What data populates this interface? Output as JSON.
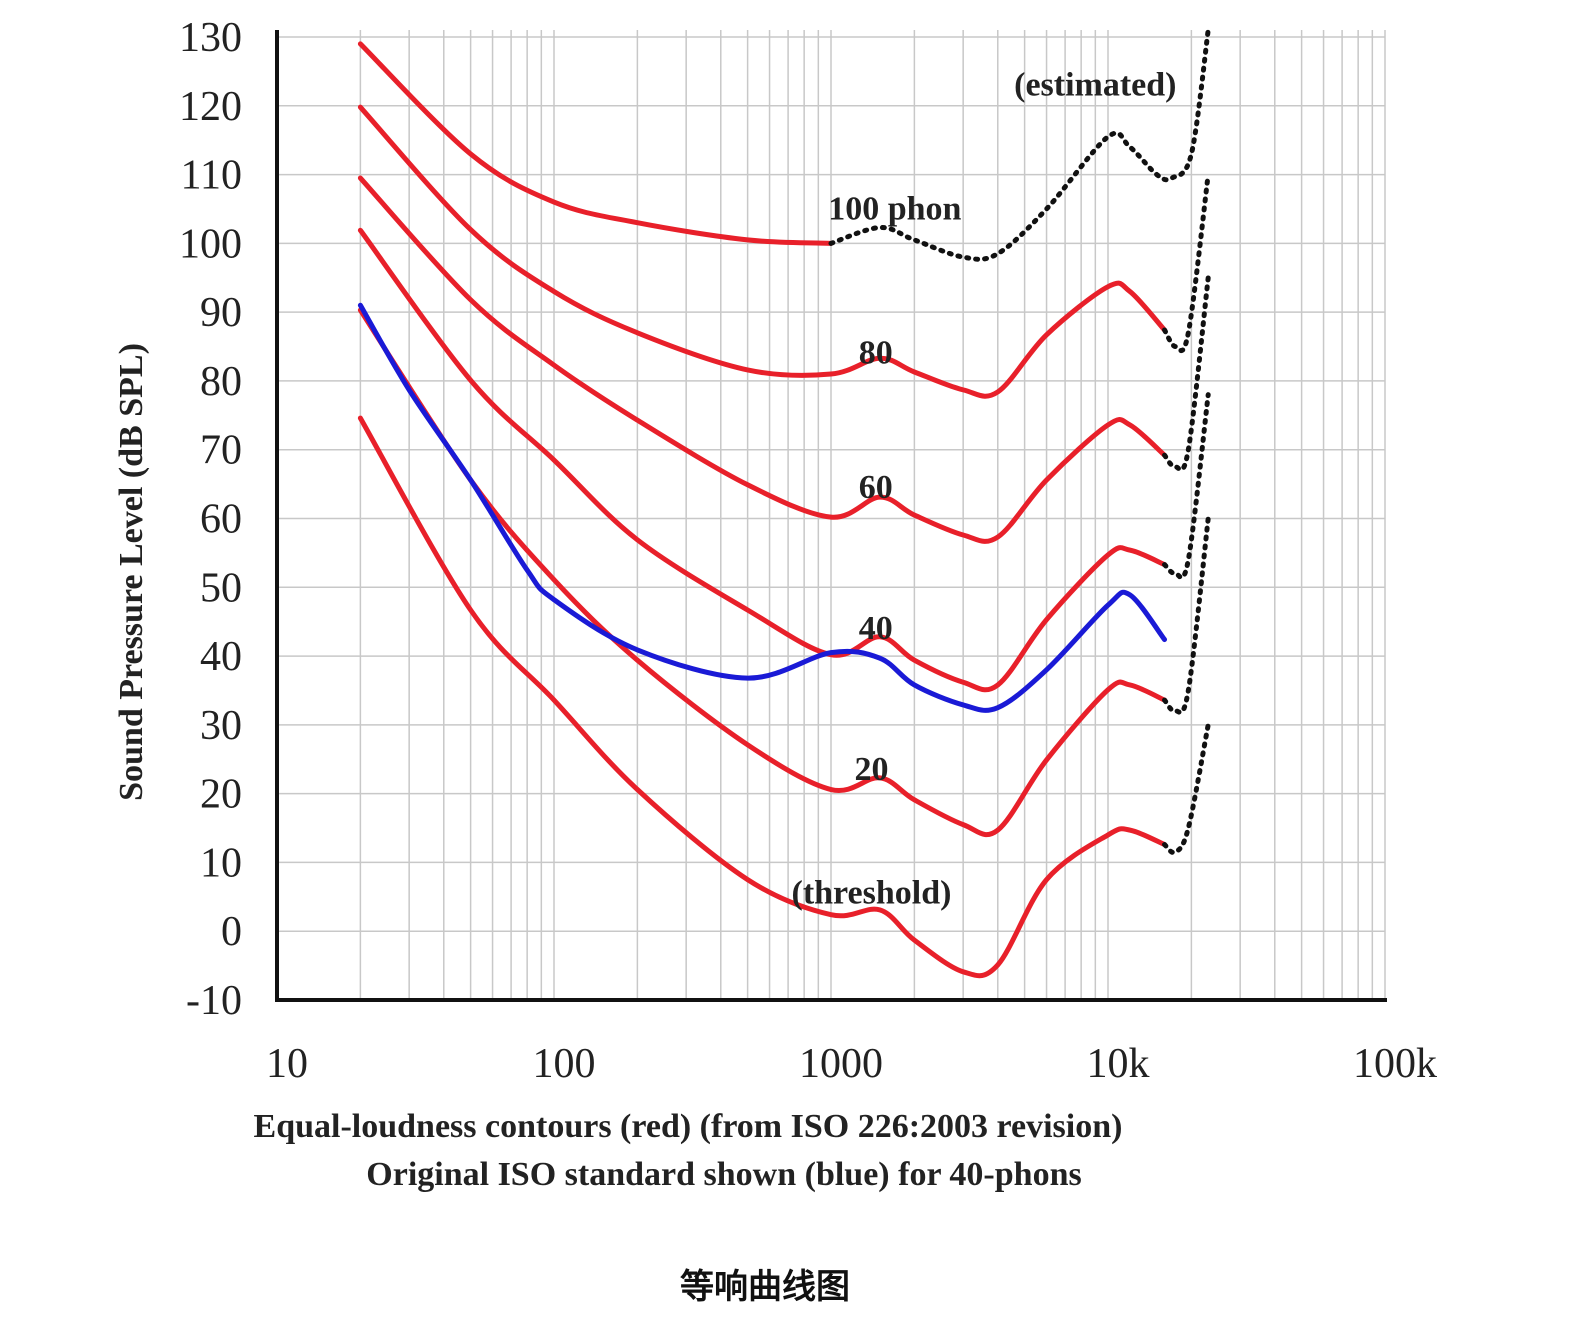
{
  "chart_data": {
    "type": "line",
    "xscale": "log",
    "xlim": [
      10,
      100000
    ],
    "ylim": [
      -10,
      130
    ],
    "grid": true,
    "ylabel": "Sound Pressure Level (dB SPL)",
    "xticks": [
      "10",
      "100",
      "1000",
      "10k",
      "100k"
    ],
    "xtick_values": [
      10,
      100,
      1000,
      10000,
      100000
    ],
    "yticks": [
      130,
      120,
      110,
      100,
      90,
      80,
      70,
      60,
      50,
      40,
      30,
      20,
      10,
      0,
      -10
    ],
    "caption_lines": [
      "Equal-loudness contours (red) (from ISO 226:2003 revision)",
      "Original ISO standard shown (blue) for 40-phons"
    ],
    "figure_title": "等响曲线图",
    "colors": {
      "red": "#e8202a",
      "blue": "#1a1ad6",
      "estimated": "#111111",
      "grid": "#c8c8c8"
    },
    "series": [
      {
        "name": "100 phon",
        "color": "red",
        "x": [
          20,
          50,
          100,
          200,
          500,
          1000
        ],
        "y": [
          129,
          113,
          106,
          103,
          100.5,
          100
        ]
      },
      {
        "name": "80 phon",
        "color": "red",
        "x": [
          20,
          50,
          100,
          200,
          500,
          1000,
          1500,
          2000,
          3000,
          4000,
          6000,
          10000,
          12000,
          16000
        ],
        "y": [
          119.8,
          102,
          93,
          87,
          81.6,
          81,
          83.3,
          81.3,
          78.7,
          78.4,
          86.7,
          93.7,
          93,
          87.4
        ]
      },
      {
        "name": "60 phon",
        "color": "red",
        "x": [
          20,
          50,
          100,
          200,
          500,
          1000,
          1500,
          2000,
          3000,
          4000,
          6000,
          10000,
          12000,
          16000
        ],
        "y": [
          109.5,
          91.8,
          82.3,
          74.3,
          64.9,
          60.2,
          63.1,
          60.5,
          57.6,
          57.3,
          65.6,
          73.6,
          73.6,
          69.2
        ]
      },
      {
        "name": "40 phon",
        "color": "red",
        "x": [
          20,
          50,
          100,
          200,
          500,
          1000,
          1500,
          2000,
          3000,
          4000,
          6000,
          10000,
          12000,
          16000
        ],
        "y": [
          101.9,
          80.1,
          68.5,
          56.9,
          46.7,
          40.2,
          42.8,
          39.4,
          36.2,
          35.8,
          45.3,
          54.7,
          55.4,
          53.3
        ]
      },
      {
        "name": "20 phon",
        "color": "red",
        "x": [
          20,
          50,
          100,
          200,
          500,
          1000,
          1500,
          2000,
          3000,
          4000,
          6000,
          10000,
          12000,
          16000
        ],
        "y": [
          90.3,
          65.6,
          51.1,
          39.4,
          27.1,
          20.6,
          22.3,
          19.1,
          15.5,
          14.7,
          24.9,
          35.1,
          35.8,
          33.6
        ]
      },
      {
        "name": "threshold",
        "color": "red",
        "x": [
          20,
          50,
          100,
          200,
          500,
          1000,
          1500,
          2000,
          3000,
          4000,
          6000,
          10000,
          12000,
          16000
        ],
        "y": [
          74.6,
          46.7,
          33.6,
          20.6,
          7.5,
          2.4,
          3.1,
          -1.3,
          -5.9,
          -4.9,
          7.5,
          14,
          14.7,
          12.6
        ]
      },
      {
        "name": "40 phon (original ISO)",
        "color": "blue",
        "x": [
          20,
          30,
          50,
          80,
          100,
          200,
          500,
          1000,
          1500,
          2000,
          3000,
          4000,
          6000,
          10000,
          12000,
          16000
        ],
        "y": [
          91,
          78.7,
          65.6,
          52.5,
          48.2,
          40.9,
          36.8,
          40.5,
          39.7,
          35.8,
          32.9,
          32.5,
          38,
          47.4,
          48.9,
          42.4
        ]
      },
      {
        "name": "100 phon (estimated)",
        "color": "estimated",
        "dashed": true,
        "x": [
          1000,
          1500,
          2000,
          3000,
          4000,
          6000,
          10000,
          12000,
          15000,
          17000,
          20000,
          23000
        ],
        "y": [
          100,
          102.3,
          100.5,
          98,
          98.5,
          105,
          115.5,
          114,
          110,
          109.5,
          113,
          131
        ]
      },
      {
        "name": "80 phon (estimated)",
        "color": "estimated",
        "dashed": true,
        "x": [
          16000,
          17500,
          19500,
          23000
        ],
        "y": [
          87.4,
          85,
          87,
          110
        ]
      },
      {
        "name": "60 phon (estimated)",
        "color": "estimated",
        "dashed": true,
        "x": [
          16000,
          17500,
          19500,
          23000
        ],
        "y": [
          69.2,
          67.5,
          70,
          95
        ]
      },
      {
        "name": "40 phon (estimated)",
        "color": "estimated",
        "dashed": true,
        "x": [
          16000,
          17500,
          19500,
          23000
        ],
        "y": [
          53.3,
          52,
          54,
          78
        ]
      },
      {
        "name": "20 phon (estimated)",
        "color": "estimated",
        "dashed": true,
        "x": [
          16000,
          17500,
          19500,
          23000
        ],
        "y": [
          33.6,
          32,
          35,
          60
        ]
      },
      {
        "name": "threshold (estimated)",
        "color": "estimated",
        "dashed": true,
        "x": [
          16000,
          17500,
          19500,
          23000
        ],
        "y": [
          12.6,
          11.5,
          15,
          30
        ]
      }
    ],
    "annotations": [
      {
        "text": "(estimated)",
        "x": 9000,
        "y": 121.5
      },
      {
        "text": "100 phon",
        "x": 1700,
        "y": 103.5
      },
      {
        "text": "80",
        "x": 1450,
        "y": 82.5
      },
      {
        "text": "60",
        "x": 1450,
        "y": 63
      },
      {
        "text": "40",
        "x": 1450,
        "y": 42.5
      },
      {
        "text": "20",
        "x": 1400,
        "y": 22
      },
      {
        "text": "(threshold)",
        "x": 1400,
        "y": 4
      }
    ]
  }
}
